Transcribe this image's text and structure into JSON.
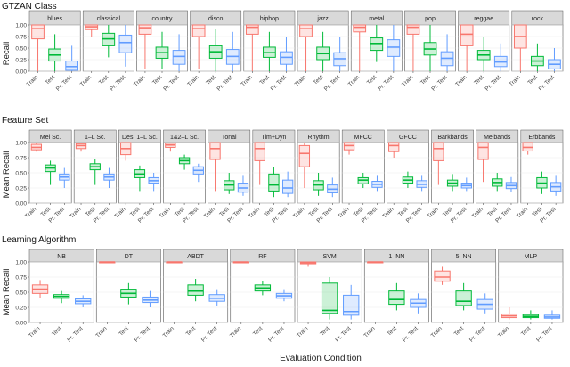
{
  "chart_data": {
    "type": "box",
    "xlabel": "Evaluation Condition",
    "conditions": [
      "Train",
      "Test",
      "Pr. Test"
    ],
    "colors": {
      "Train": "#f8766d",
      "Test": "#00ba38",
      "Pr. Test": "#619cff"
    },
    "yticks": [
      "0.00",
      "0.25",
      "0.50",
      "0.75",
      "1.00"
    ],
    "ylim": [
      0,
      1
    ],
    "rows": [
      {
        "title": "GTZAN Class",
        "ylabel": "Recall",
        "panels": [
          {
            "label": "blues",
            "boxes": [
              {
                "lo": 0.0,
                "q1": 0.7,
                "med": 0.92,
                "q3": 1.0,
                "hi": 1.0
              },
              {
                "lo": 0.0,
                "q1": 0.22,
                "med": 0.35,
                "q3": 0.48,
                "hi": 0.8
              },
              {
                "lo": 0.0,
                "q1": 0.02,
                "med": 0.1,
                "q3": 0.22,
                "hi": 0.55
              }
            ]
          },
          {
            "label": "classical",
            "boxes": [
              {
                "lo": 0.75,
                "q1": 0.9,
                "med": 0.96,
                "q3": 1.0,
                "hi": 1.0
              },
              {
                "lo": 0.3,
                "q1": 0.55,
                "med": 0.7,
                "q3": 0.82,
                "hi": 1.0
              },
              {
                "lo": 0.1,
                "q1": 0.4,
                "med": 0.62,
                "q3": 0.78,
                "hi": 1.0
              }
            ]
          },
          {
            "label": "country",
            "boxes": [
              {
                "lo": 0.05,
                "q1": 0.8,
                "med": 0.94,
                "q3": 1.0,
                "hi": 1.0
              },
              {
                "lo": 0.05,
                "q1": 0.28,
                "med": 0.4,
                "q3": 0.52,
                "hi": 0.85
              },
              {
                "lo": 0.0,
                "q1": 0.15,
                "med": 0.32,
                "q3": 0.45,
                "hi": 0.8
              }
            ]
          },
          {
            "label": "disco",
            "boxes": [
              {
                "lo": 0.05,
                "q1": 0.75,
                "med": 0.92,
                "q3": 1.0,
                "hi": 1.0
              },
              {
                "lo": 0.0,
                "q1": 0.28,
                "med": 0.42,
                "q3": 0.55,
                "hi": 0.92
              },
              {
                "lo": 0.0,
                "q1": 0.15,
                "med": 0.32,
                "q3": 0.47,
                "hi": 0.85
              }
            ]
          },
          {
            "label": "hiphop",
            "boxes": [
              {
                "lo": 0.0,
                "q1": 0.8,
                "med": 0.95,
                "q3": 1.0,
                "hi": 1.0
              },
              {
                "lo": 0.0,
                "q1": 0.3,
                "med": 0.4,
                "q3": 0.52,
                "hi": 0.85
              },
              {
                "lo": 0.0,
                "q1": 0.15,
                "med": 0.3,
                "q3": 0.42,
                "hi": 0.75
              }
            ]
          },
          {
            "label": "jazz",
            "boxes": [
              {
                "lo": 0.0,
                "q1": 0.75,
                "med": 0.92,
                "q3": 1.0,
                "hi": 1.0
              },
              {
                "lo": 0.0,
                "q1": 0.25,
                "med": 0.38,
                "q3": 0.52,
                "hi": 0.85
              },
              {
                "lo": 0.0,
                "q1": 0.12,
                "med": 0.27,
                "q3": 0.4,
                "hi": 0.75
              }
            ]
          },
          {
            "label": "metal",
            "boxes": [
              {
                "lo": 0.0,
                "q1": 0.85,
                "med": 0.95,
                "q3": 1.0,
                "hi": 1.0
              },
              {
                "lo": 0.2,
                "q1": 0.45,
                "med": 0.6,
                "q3": 0.72,
                "hi": 1.0
              },
              {
                "lo": 0.0,
                "q1": 0.32,
                "med": 0.52,
                "q3": 0.68,
                "hi": 1.0
              }
            ]
          },
          {
            "label": "pop",
            "boxes": [
              {
                "lo": 0.0,
                "q1": 0.8,
                "med": 0.95,
                "q3": 1.0,
                "hi": 1.0
              },
              {
                "lo": 0.0,
                "q1": 0.35,
                "med": 0.48,
                "q3": 0.62,
                "hi": 1.0
              },
              {
                "lo": 0.0,
                "q1": 0.12,
                "med": 0.28,
                "q3": 0.42,
                "hi": 0.8
              }
            ]
          },
          {
            "label": "reggae",
            "boxes": [
              {
                "lo": 0.0,
                "q1": 0.55,
                "med": 0.8,
                "q3": 1.0,
                "hi": 1.0
              },
              {
                "lo": 0.0,
                "q1": 0.25,
                "med": 0.35,
                "q3": 0.45,
                "hi": 0.75
              },
              {
                "lo": 0.0,
                "q1": 0.1,
                "med": 0.2,
                "q3": 0.32,
                "hi": 0.6
              }
            ]
          },
          {
            "label": "rock",
            "boxes": [
              {
                "lo": 0.0,
                "q1": 0.5,
                "med": 0.75,
                "q3": 1.0,
                "hi": 1.0
              },
              {
                "lo": 0.0,
                "q1": 0.12,
                "med": 0.22,
                "q3": 0.32,
                "hi": 0.6
              },
              {
                "lo": 0.0,
                "q1": 0.05,
                "med": 0.15,
                "q3": 0.25,
                "hi": 0.5
              }
            ]
          }
        ]
      },
      {
        "title": "Feature Set",
        "ylabel": "Mean Recall",
        "panels": [
          {
            "label": "Mel Sc.",
            "boxes": [
              {
                "lo": 0.85,
                "q1": 0.88,
                "med": 0.92,
                "q3": 0.97,
                "hi": 1.0
              },
              {
                "lo": 0.3,
                "q1": 0.52,
                "med": 0.58,
                "q3": 0.63,
                "hi": 0.7
              },
              {
                "lo": 0.25,
                "q1": 0.38,
                "med": 0.43,
                "q3": 0.48,
                "hi": 0.58
              }
            ]
          },
          {
            "label": "1–L Sc.",
            "boxes": [
              {
                "lo": 0.85,
                "q1": 0.9,
                "med": 0.95,
                "q3": 0.98,
                "hi": 1.0
              },
              {
                "lo": 0.3,
                "q1": 0.55,
                "med": 0.6,
                "q3": 0.65,
                "hi": 0.72
              },
              {
                "lo": 0.25,
                "q1": 0.38,
                "med": 0.43,
                "q3": 0.48,
                "hi": 0.58
              }
            ]
          },
          {
            "label": "Des. 1–L Sc.",
            "boxes": [
              {
                "lo": 0.7,
                "q1": 0.8,
                "med": 0.9,
                "q3": 1.0,
                "hi": 1.0
              },
              {
                "lo": 0.2,
                "q1": 0.42,
                "med": 0.48,
                "q3": 0.55,
                "hi": 0.62
              },
              {
                "lo": 0.2,
                "q1": 0.33,
                "med": 0.37,
                "q3": 0.42,
                "hi": 0.5
              }
            ]
          },
          {
            "label": "1&2–L Sc.",
            "boxes": [
              {
                "lo": 0.85,
                "q1": 0.92,
                "med": 0.96,
                "q3": 0.99,
                "hi": 1.0
              },
              {
                "lo": 0.55,
                "q1": 0.65,
                "med": 0.7,
                "q3": 0.75,
                "hi": 0.8
              },
              {
                "lo": 0.35,
                "q1": 0.48,
                "med": 0.54,
                "q3": 0.6,
                "hi": 0.65
              }
            ]
          },
          {
            "label": "Tonal",
            "boxes": [
              {
                "lo": 0.2,
                "q1": 0.72,
                "med": 0.9,
                "q3": 1.0,
                "hi": 1.0
              },
              {
                "lo": 0.15,
                "q1": 0.22,
                "med": 0.3,
                "q3": 0.37,
                "hi": 0.5
              },
              {
                "lo": 0.12,
                "q1": 0.18,
                "med": 0.25,
                "q3": 0.33,
                "hi": 0.45
              }
            ]
          },
          {
            "label": "Tim+Dyn",
            "boxes": [
              {
                "lo": 0.3,
                "q1": 0.7,
                "med": 0.9,
                "q3": 1.0,
                "hi": 1.0
              },
              {
                "lo": 0.1,
                "q1": 0.2,
                "med": 0.3,
                "q3": 0.48,
                "hi": 0.6
              },
              {
                "lo": 0.1,
                "q1": 0.16,
                "med": 0.25,
                "q3": 0.38,
                "hi": 0.52
              }
            ]
          },
          {
            "label": "Rhythm",
            "boxes": [
              {
                "lo": 0.25,
                "q1": 0.6,
                "med": 0.82,
                "q3": 0.95,
                "hi": 1.0
              },
              {
                "lo": 0.12,
                "q1": 0.22,
                "med": 0.3,
                "q3": 0.37,
                "hi": 0.5
              },
              {
                "lo": 0.1,
                "q1": 0.17,
                "med": 0.23,
                "q3": 0.3,
                "hi": 0.42
              }
            ]
          },
          {
            "label": "MFCC",
            "boxes": [
              {
                "lo": 0.8,
                "q1": 0.88,
                "med": 0.95,
                "q3": 1.0,
                "hi": 1.0
              },
              {
                "lo": 0.25,
                "q1": 0.32,
                "med": 0.38,
                "q3": 0.42,
                "hi": 0.5
              },
              {
                "lo": 0.2,
                "q1": 0.26,
                "med": 0.31,
                "q3": 0.36,
                "hi": 0.45
              }
            ]
          },
          {
            "label": "GFCC",
            "boxes": [
              {
                "lo": 0.75,
                "q1": 0.85,
                "med": 0.95,
                "q3": 1.0,
                "hi": 1.0
              },
              {
                "lo": 0.25,
                "q1": 0.33,
                "med": 0.38,
                "q3": 0.43,
                "hi": 0.52
              },
              {
                "lo": 0.2,
                "q1": 0.26,
                "med": 0.31,
                "q3": 0.37,
                "hi": 0.45
              }
            ]
          },
          {
            "label": "Barkbands",
            "boxes": [
              {
                "lo": 0.3,
                "q1": 0.7,
                "med": 0.9,
                "q3": 1.0,
                "hi": 1.0
              },
              {
                "lo": 0.2,
                "q1": 0.28,
                "med": 0.33,
                "q3": 0.38,
                "hi": 0.48
              },
              {
                "lo": 0.2,
                "q1": 0.25,
                "med": 0.29,
                "q3": 0.33,
                "hi": 0.42
              }
            ]
          },
          {
            "label": "Melbands",
            "boxes": [
              {
                "lo": 0.35,
                "q1": 0.72,
                "med": 0.92,
                "q3": 1.0,
                "hi": 1.0
              },
              {
                "lo": 0.2,
                "q1": 0.28,
                "med": 0.34,
                "q3": 0.4,
                "hi": 0.5
              },
              {
                "lo": 0.18,
                "q1": 0.24,
                "med": 0.29,
                "q3": 0.34,
                "hi": 0.43
              }
            ]
          },
          {
            "label": "Erbbands",
            "boxes": [
              {
                "lo": 0.8,
                "q1": 0.86,
                "med": 0.92,
                "q3": 1.0,
                "hi": 1.0
              },
              {
                "lo": 0.15,
                "q1": 0.25,
                "med": 0.33,
                "q3": 0.42,
                "hi": 0.52
              },
              {
                "lo": 0.12,
                "q1": 0.2,
                "med": 0.27,
                "q3": 0.34,
                "hi": 0.45
              }
            ]
          }
        ]
      },
      {
        "title": "Learning Algorithm",
        "ylabel": "Mean Recall",
        "panels": [
          {
            "label": "NB",
            "boxes": [
              {
                "lo": 0.4,
                "q1": 0.48,
                "med": 0.55,
                "q3": 0.62,
                "hi": 0.7
              },
              {
                "lo": 0.32,
                "q1": 0.4,
                "med": 0.43,
                "q3": 0.46,
                "hi": 0.52
              },
              {
                "lo": 0.25,
                "q1": 0.31,
                "med": 0.35,
                "q3": 0.39,
                "hi": 0.45
              }
            ]
          },
          {
            "label": "DT",
            "boxes": [
              {
                "lo": 0.99,
                "q1": 0.99,
                "med": 1.0,
                "q3": 1.0,
                "hi": 1.0
              },
              {
                "lo": 0.3,
                "q1": 0.42,
                "med": 0.48,
                "q3": 0.55,
                "hi": 0.65
              },
              {
                "lo": 0.25,
                "q1": 0.33,
                "med": 0.37,
                "q3": 0.42,
                "hi": 0.52
              }
            ]
          },
          {
            "label": "ABDT",
            "boxes": [
              {
                "lo": 0.99,
                "q1": 0.99,
                "med": 1.0,
                "q3": 1.0,
                "hi": 1.0
              },
              {
                "lo": 0.35,
                "q1": 0.45,
                "med": 0.52,
                "q3": 0.62,
                "hi": 0.72
              },
              {
                "lo": 0.28,
                "q1": 0.35,
                "med": 0.4,
                "q3": 0.46,
                "hi": 0.55
              }
            ]
          },
          {
            "label": "RF",
            "boxes": [
              {
                "lo": 0.99,
                "q1": 0.99,
                "med": 1.0,
                "q3": 1.0,
                "hi": 1.0
              },
              {
                "lo": 0.45,
                "q1": 0.52,
                "med": 0.57,
                "q3": 0.62,
                "hi": 0.68
              },
              {
                "lo": 0.35,
                "q1": 0.4,
                "med": 0.44,
                "q3": 0.48,
                "hi": 0.55
              }
            ]
          },
          {
            "label": "SVM",
            "boxes": [
              {
                "lo": 0.92,
                "q1": 0.97,
                "med": 0.99,
                "q3": 1.0,
                "hi": 1.0
              },
              {
                "lo": 0.05,
                "q1": 0.15,
                "med": 0.2,
                "q3": 0.65,
                "hi": 0.75
              },
              {
                "lo": 0.05,
                "q1": 0.12,
                "med": 0.18,
                "q3": 0.45,
                "hi": 0.62
              }
            ]
          },
          {
            "label": "1–NN",
            "boxes": [
              {
                "lo": 0.99,
                "q1": 0.99,
                "med": 1.0,
                "q3": 1.0,
                "hi": 1.0
              },
              {
                "lo": 0.2,
                "q1": 0.3,
                "med": 0.38,
                "q3": 0.52,
                "hi": 0.65
              },
              {
                "lo": 0.15,
                "q1": 0.25,
                "med": 0.32,
                "q3": 0.38,
                "hi": 0.48
              }
            ]
          },
          {
            "label": "5–NN",
            "boxes": [
              {
                "lo": 0.62,
                "q1": 0.68,
                "med": 0.75,
                "q3": 0.85,
                "hi": 0.92
              },
              {
                "lo": 0.2,
                "q1": 0.28,
                "med": 0.35,
                "q3": 0.52,
                "hi": 0.65
              },
              {
                "lo": 0.15,
                "q1": 0.22,
                "med": 0.3,
                "q3": 0.38,
                "hi": 0.48
              }
            ]
          },
          {
            "label": "MLP",
            "boxes": [
              {
                "lo": 0.05,
                "q1": 0.08,
                "med": 0.11,
                "q3": 0.14,
                "hi": 0.25
              },
              {
                "lo": 0.05,
                "q1": 0.08,
                "med": 0.1,
                "q3": 0.13,
                "hi": 0.2
              },
              {
                "lo": 0.05,
                "q1": 0.07,
                "med": 0.09,
                "q3": 0.12,
                "hi": 0.2
              }
            ]
          }
        ]
      }
    ]
  }
}
